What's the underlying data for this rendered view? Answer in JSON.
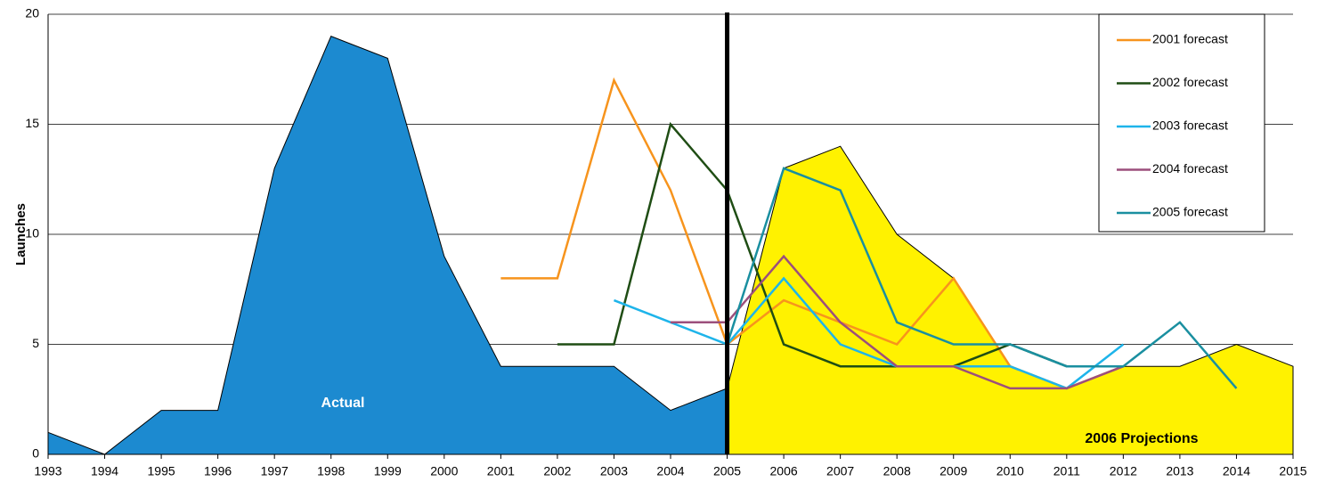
{
  "chart_data": {
    "type": "line",
    "y_label": "Launches",
    "x": [
      1993,
      1994,
      1995,
      1996,
      1997,
      1998,
      1999,
      2000,
      2001,
      2002,
      2003,
      2004,
      2005,
      2006,
      2007,
      2008,
      2009,
      2010,
      2011,
      2012,
      2013,
      2014,
      2015
    ],
    "xlim": [
      1993,
      2015
    ],
    "xticks": [
      1993,
      1994,
      1995,
      1996,
      1997,
      1998,
      1999,
      2000,
      2001,
      2002,
      2003,
      2004,
      2005,
      2006,
      2007,
      2008,
      2009,
      2010,
      2011,
      2012,
      2013,
      2014,
      2015
    ],
    "ylim": [
      0,
      20
    ],
    "yticks": [
      0,
      5,
      10,
      15,
      20
    ],
    "grid": true,
    "legend": "upper right",
    "divider_x": 2005,
    "areas": [
      {
        "name": "Actual",
        "color": "#1c8ad0",
        "values": [
          1,
          0,
          2,
          2,
          13,
          19,
          18,
          9,
          4,
          4,
          4,
          2,
          3,
          null,
          null,
          null,
          null,
          null,
          null,
          null,
          null,
          null,
          null
        ]
      },
      {
        "name": "2006 Projections",
        "color": "#fff200",
        "values": [
          null,
          null,
          null,
          null,
          null,
          null,
          null,
          null,
          null,
          null,
          null,
          null,
          3,
          13,
          14,
          10,
          8,
          4,
          3,
          4,
          4,
          5,
          4
        ]
      }
    ],
    "series": [
      {
        "name": "2001 forecast",
        "color": "#f7941d",
        "values": [
          null,
          null,
          null,
          null,
          null,
          null,
          null,
          null,
          8,
          8,
          17,
          12,
          5,
          7,
          6,
          5,
          8,
          4,
          3,
          4,
          null,
          null,
          null
        ]
      },
      {
        "name": "2002 forecast",
        "color": "#1f4d14",
        "values": [
          null,
          null,
          null,
          null,
          null,
          null,
          null,
          null,
          null,
          5,
          5,
          15,
          12,
          5,
          4,
          4,
          4,
          5,
          4,
          4,
          null,
          null,
          null
        ]
      },
      {
        "name": "2003 forecast",
        "color": "#1eb4ea",
        "values": [
          null,
          null,
          null,
          null,
          null,
          null,
          null,
          null,
          null,
          null,
          7,
          6,
          5,
          8,
          5,
          4,
          4,
          4,
          3,
          5,
          null,
          null,
          null
        ]
      },
      {
        "name": "2004 forecast",
        "color": "#9c4f7c",
        "values": [
          null,
          null,
          null,
          null,
          null,
          null,
          null,
          null,
          null,
          null,
          null,
          6,
          6,
          9,
          6,
          4,
          4,
          3,
          3,
          4,
          null,
          null,
          null
        ]
      },
      {
        "name": "2005 forecast",
        "color": "#1a8fa0",
        "values": [
          null,
          null,
          null,
          null,
          null,
          null,
          null,
          null,
          null,
          null,
          null,
          null,
          5,
          13,
          12,
          6,
          5,
          5,
          4,
          4,
          6,
          3,
          null
        ]
      }
    ]
  }
}
